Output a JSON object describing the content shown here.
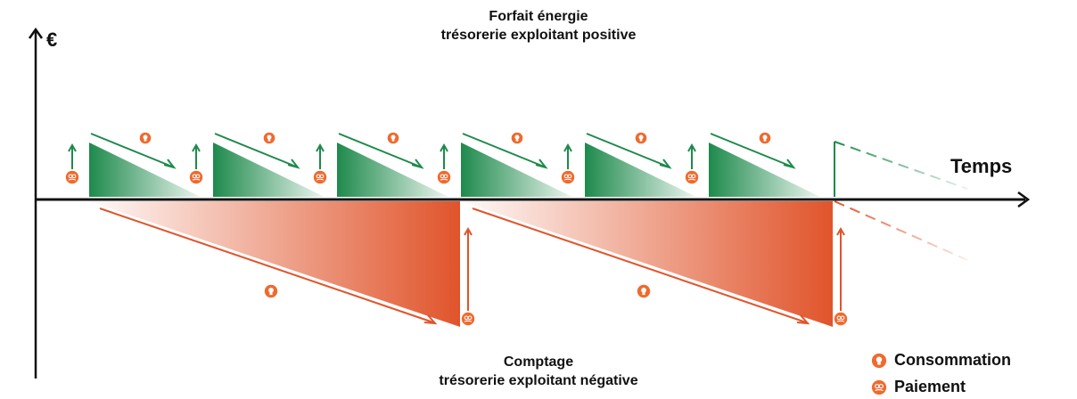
{
  "title_top": {
    "line1": "Forfait énergie",
    "line2": "trésorerie exploitant positive"
  },
  "title_bottom": {
    "line1": "Comptage",
    "line2": "trésorerie exploitant négative"
  },
  "axes": {
    "y_label": "€",
    "x_label": "Temps"
  },
  "legend": {
    "consumption_label": "Consommation",
    "payment_label": "Paiement"
  },
  "icons": {
    "consumption": "lightbulb-icon",
    "payment": "hand-coins-icon"
  },
  "colors": {
    "green": "#1e8a4c",
    "orange": "#e0542b",
    "axis": "#111111"
  },
  "structure": {
    "forfait_cycles": 6,
    "comptage_cycles": 2
  }
}
